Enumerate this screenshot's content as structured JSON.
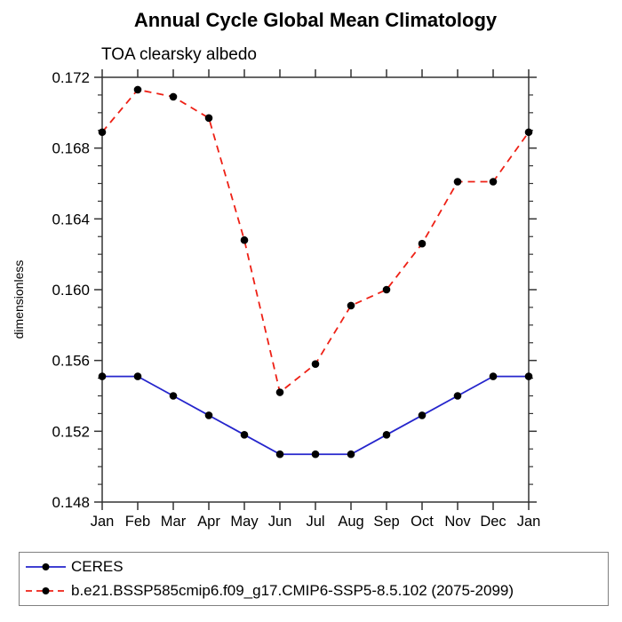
{
  "title": "Annual Cycle Global Mean Climatology",
  "subtitle": "TOA clearsky albedo",
  "ylabel": "dimensionless",
  "chart_data": {
    "type": "line",
    "categories": [
      "Jan",
      "Feb",
      "Mar",
      "Apr",
      "May",
      "Jun",
      "Jul",
      "Aug",
      "Sep",
      "Oct",
      "Nov",
      "Dec",
      "Jan"
    ],
    "ylim": [
      0.148,
      0.172
    ],
    "ytick_major": [
      0.148,
      0.152,
      0.156,
      0.16,
      0.164,
      0.168,
      0.172
    ],
    "ytick_minor_step": 0.001,
    "grid": false,
    "legend_position": "bottom-outside",
    "axis_color": "#333333",
    "marker_color": "#000000",
    "series": [
      {
        "name": "CERES",
        "color": "#2525cc",
        "style": "solid",
        "marker": "filled-circle",
        "values": [
          0.1551,
          0.1551,
          0.154,
          0.1529,
          0.1518,
          0.1507,
          0.1507,
          0.1507,
          0.1518,
          0.1529,
          0.154,
          0.1551,
          0.1551
        ]
      },
      {
        "name": "b.e21.BSSP585cmip6.f09_g17.CMIP6-SSP5-8.5.102 (2075-2099)",
        "color": "#ee2015",
        "style": "dashed",
        "marker": "filled-circle",
        "values": [
          0.1689,
          0.1713,
          0.1709,
          0.1697,
          0.1628,
          0.1542,
          0.1558,
          0.1591,
          0.16,
          0.1626,
          0.1661,
          0.1661,
          0.1689
        ]
      }
    ]
  }
}
